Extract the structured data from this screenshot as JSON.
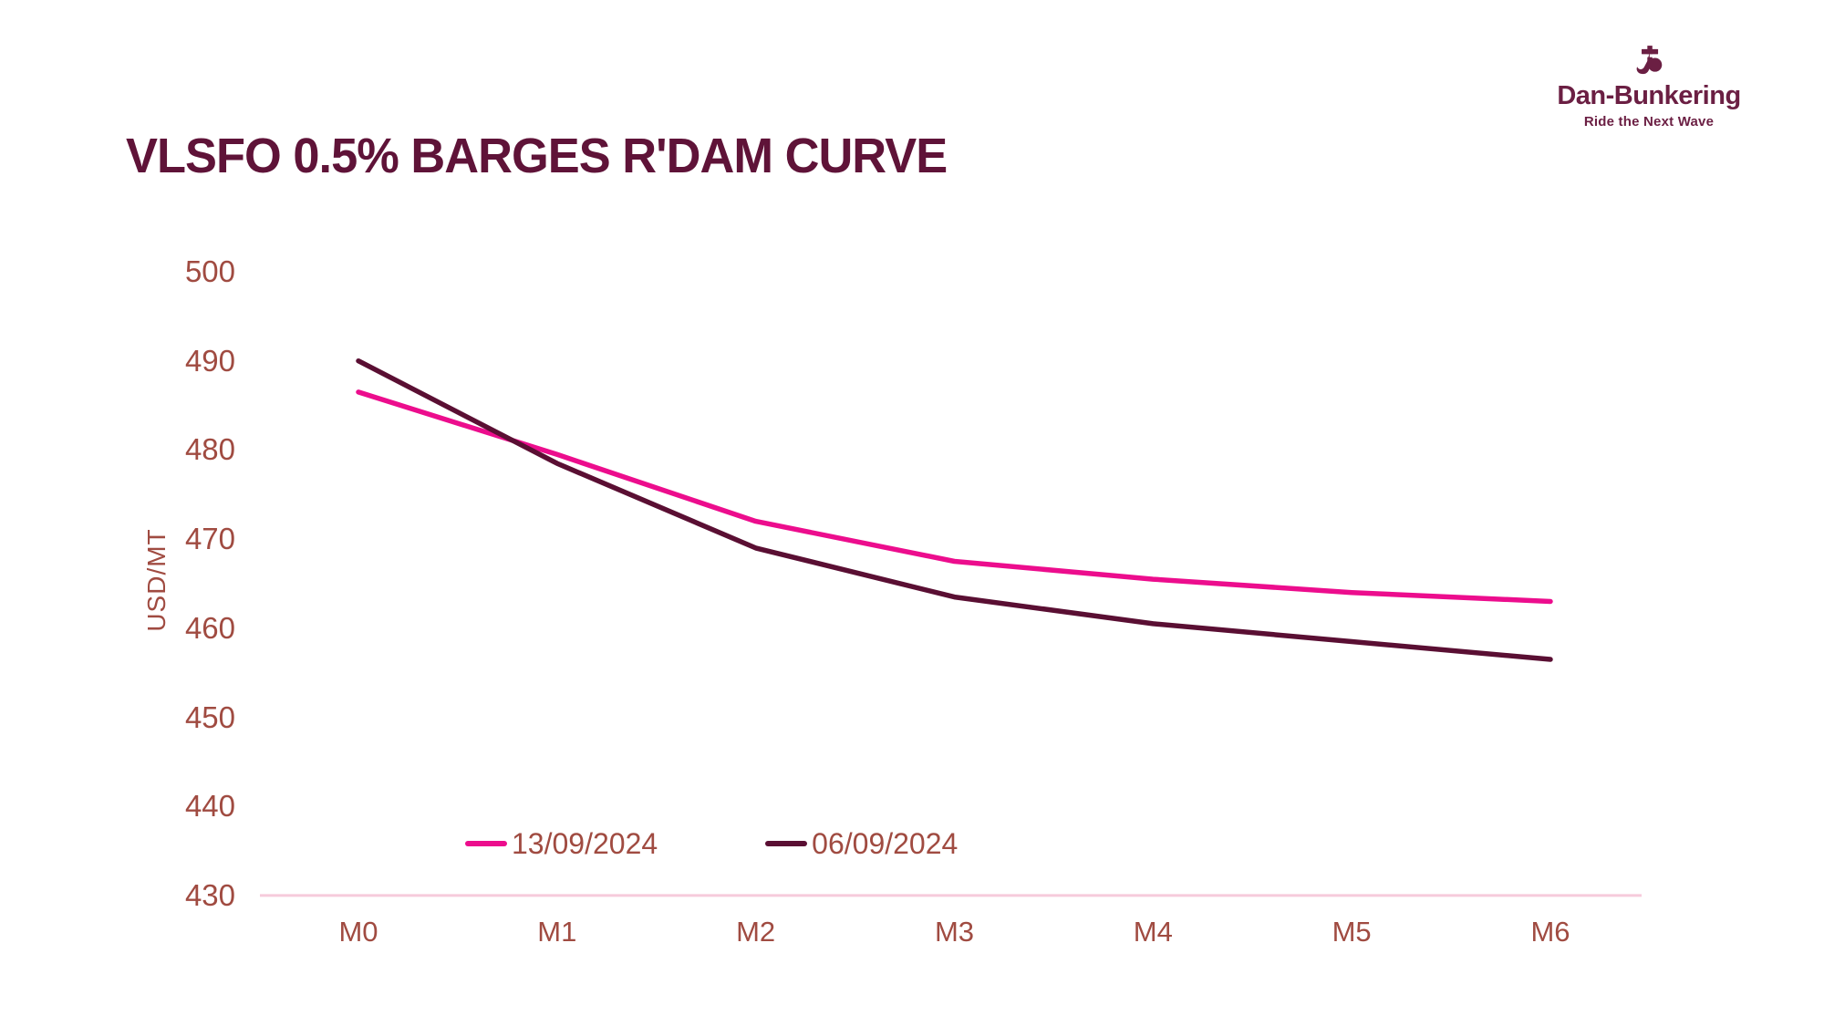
{
  "title": "VLSFO 0.5% BARGES R'DAM CURVE",
  "logo": {
    "name": "Dan-Bunkering",
    "tagline": "Ride the Next Wave",
    "mark_icon": "anchor-b-emblem"
  },
  "colors": {
    "title": "#5F1338",
    "logo": "#6B1F43",
    "axis_text": "#A04B41",
    "axis_line": "#F6CBDB",
    "series_pink": "#EC0D8D",
    "series_dark": "#5A0F33",
    "background": "#FFFFFF"
  },
  "chart_data": {
    "type": "line",
    "title": "VLSFO 0.5% BARGES R'DAM CURVE",
    "categories": [
      "M0",
      "M1",
      "M2",
      "M3",
      "M4",
      "M5",
      "M6"
    ],
    "series": [
      {
        "name": "13/09/2024",
        "color": "#EC0D8D",
        "values": [
          486.5,
          479.5,
          472,
          467.5,
          465.5,
          464,
          463
        ]
      },
      {
        "name": "06/09/2024",
        "color": "#5A0F33",
        "values": [
          490,
          478.5,
          469,
          463.5,
          460.5,
          458.5,
          456.5
        ]
      }
    ],
    "xlabel": "",
    "ylabel": "USD/MT",
    "ylim": [
      430,
      500
    ],
    "yticks": [
      500,
      490,
      480,
      470,
      460,
      450,
      440,
      430
    ],
    "grid": false,
    "legend_position": "bottom"
  }
}
